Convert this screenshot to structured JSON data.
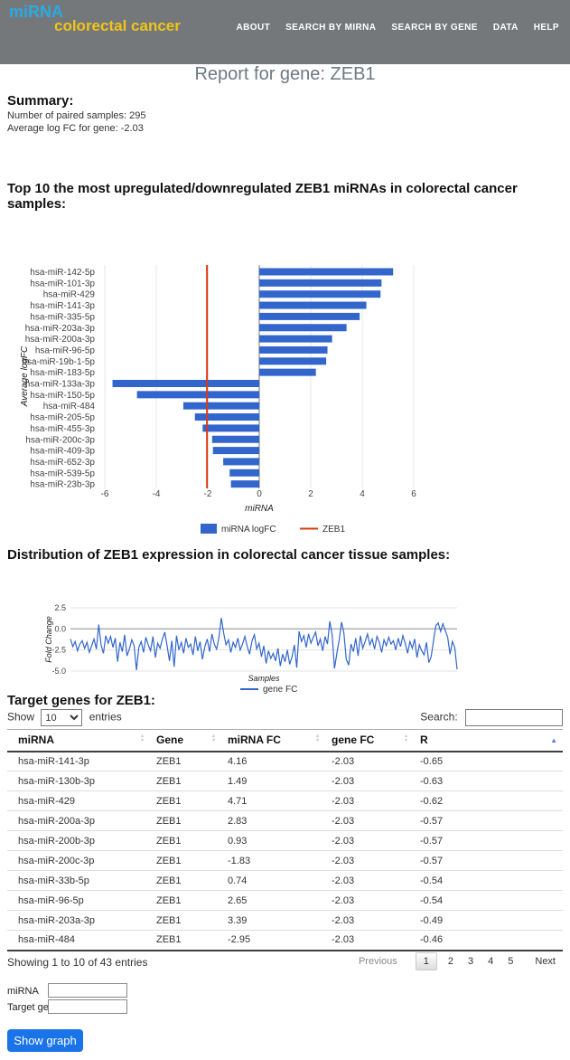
{
  "header": {
    "logo_line1": "miRNA",
    "logo_line2": "colorectal cancer",
    "bg_color": "#75787b",
    "logo_color1": "#29abe2",
    "logo_color2": "#f0c419",
    "nav": [
      "ABOUT",
      "SEARCH BY MIRNA",
      "SEARCH BY GENE",
      "DATA",
      "HELP"
    ]
  },
  "page_title": "Report for gene: ZEB1",
  "summary": {
    "heading": "Summary:",
    "lines": [
      "Number of paired samples: 295",
      "Average log FC for gene: -2.03"
    ]
  },
  "sections": {
    "bar_heading": "Top 10 the most upregulated/downregulated ZEB1 miRNAs in colorectal cancer samples:",
    "dist_heading": "Distribution of ZEB1 expression in colorectal cancer tissue samples:",
    "table_heading": "Target genes for ZEB1:"
  },
  "chart_data": [
    {
      "type": "bar",
      "orientation": "horizontal",
      "categories": [
        "hsa-miR-142-5p",
        "hsa-miR-101-3p",
        "hsa-miR-429",
        "hsa-miR-141-3p",
        "hsa-miR-335-5p",
        "hsa-miR-203a-3p",
        "hsa-miR-200a-3p",
        "hsa-miR-96-5p",
        "hsa-miR-19b-1-5p",
        "hsa-miR-183-5p",
        "hsa-miR-133a-3p",
        "hsa-miR-150-5p",
        "hsa-miR-484",
        "hsa-miR-205-5p",
        "hsa-miR-455-3p",
        "hsa-miR-200c-3p",
        "hsa-miR-409-3p",
        "hsa-miR-652-3p",
        "hsa-miR-539-5p",
        "hsa-miR-23b-3p"
      ],
      "values": [
        5.2,
        4.75,
        4.71,
        4.16,
        3.9,
        3.39,
        2.83,
        2.65,
        2.6,
        2.2,
        -5.7,
        -4.75,
        -2.95,
        -2.5,
        -2.2,
        -1.83,
        -1.8,
        -1.4,
        -1.15,
        -1.1
      ],
      "xlabel": "miRNA",
      "ylabel": "Average logFC",
      "xlim": [
        -6,
        6
      ],
      "xticks": [
        -6,
        -4,
        -2,
        0,
        2,
        4,
        6
      ],
      "bar_color": "#3366cc",
      "reference_line": {
        "label": "ZEB1",
        "value": -2.03,
        "color": "#dc3912"
      },
      "legend": [
        {
          "label": "miRNA logFC",
          "color": "#3366cc",
          "shape": "rect"
        },
        {
          "label": "ZEB1",
          "color": "#dc3912",
          "shape": "line"
        }
      ],
      "grid": true,
      "legend_position": "bottom"
    },
    {
      "type": "line",
      "xlabel": "Samples",
      "ylabel": "Fold Change",
      "yticks": [
        2.5,
        0.0,
        -2.5,
        -5.0
      ],
      "ylim": [
        -5.5,
        3.2
      ],
      "line_color": "#3366cc",
      "grid": true,
      "legend_position": "bottom",
      "series": [
        {
          "name": "gene FC",
          "values": [
            -1.2,
            -2.1,
            -1.5,
            -2.6,
            -1.8,
            -1.4,
            -2.3,
            -1.6,
            -2.8,
            -2.0,
            -1.2,
            -2.4,
            0.5,
            -1.9,
            -2.9,
            -0.8,
            -1.7,
            -0.9,
            -2.2,
            -1.1,
            -3.9,
            -1.6,
            -2.7,
            -0.7,
            -3.2,
            -2.4,
            -1.3,
            -2.0,
            -4.9,
            -2.2,
            -1.5,
            -2.8,
            -1.0,
            -1.9,
            -2.6,
            -0.9,
            -3.4,
            -1.7,
            -2.3,
            -1.2,
            -0.4,
            -2.0,
            -3.8,
            -1.4,
            -4.5,
            -0.8,
            -2.5,
            -1.6,
            -2.9,
            -1.1,
            -2.2,
            -1.8,
            -3.1,
            -0.9,
            -2.6,
            -1.5,
            -3.6,
            -2.1,
            -1.2,
            -2.7,
            -0.6,
            -1.8,
            -2.4,
            -1.0,
            1.3,
            -0.5,
            -1.9,
            -1.3,
            -2.8,
            -1.6,
            -2.2,
            -1.1,
            -2.5,
            -1.8,
            -0.9,
            -2.1,
            -3.0,
            -1.4,
            -0.7,
            -2.4,
            -1.7,
            -3.3,
            -2.0,
            -4.1,
            -2.6,
            -3.5,
            -2.9,
            -3.8,
            -2.3,
            -4.4,
            -3.0,
            -3.9,
            -2.5,
            -4.2,
            -3.3,
            -1.9,
            -4.6,
            -0.3,
            -1.5,
            -0.8,
            -2.2,
            -0.6,
            -1.7,
            -1.0,
            -0.4,
            -2.0,
            -1.2,
            -2.6,
            -0.9,
            -1.8,
            0.9,
            -0.7,
            -4.7,
            -2.9,
            -1.3,
            0.8,
            -0.5,
            -3.6,
            -4.3,
            -1.8,
            -2.7,
            -1.1,
            -3.2,
            -0.8,
            -2.3,
            -1.5,
            -0.6,
            -1.9,
            -1.2,
            -2.4,
            -0.9,
            -1.6,
            -2.8,
            -1.3,
            -2.0,
            -1.0,
            -1.8,
            -1.4,
            -2.5,
            -1.1,
            -2.1,
            -0.8,
            -1.7,
            -2.9,
            -1.5,
            -2.3,
            -1.2,
            -3.4,
            -1.9,
            -2.6,
            -3.1,
            -1.6,
            -4.0,
            -3.3,
            -1.4,
            0.4,
            0.7,
            -0.3,
            0.6,
            -0.2,
            -1.0,
            -3.0,
            -1.5,
            -2.2,
            -4.8
          ]
        }
      ]
    }
  ],
  "table": {
    "show_label_before": "Show",
    "show_value": "10",
    "show_label_after": "entries",
    "search_label": "Search:",
    "search_value": "",
    "columns": [
      {
        "label": "miRNA",
        "sort": "none"
      },
      {
        "label": "Gene",
        "sort": "none"
      },
      {
        "label": "miRNA FC",
        "sort": "none"
      },
      {
        "label": "gene FC",
        "sort": "none"
      },
      {
        "label": "R",
        "sort": "asc"
      }
    ],
    "rows": [
      [
        "hsa-miR-141-3p",
        "ZEB1",
        "4.16",
        "-2.03",
        "-0.65"
      ],
      [
        "hsa-miR-130b-3p",
        "ZEB1",
        "1.49",
        "-2.03",
        "-0.63"
      ],
      [
        "hsa-miR-429",
        "ZEB1",
        "4.71",
        "-2.03",
        "-0.62"
      ],
      [
        "hsa-miR-200a-3p",
        "ZEB1",
        "2.83",
        "-2.03",
        "-0.57"
      ],
      [
        "hsa-miR-200b-3p",
        "ZEB1",
        "0.93",
        "-2.03",
        "-0.57"
      ],
      [
        "hsa-miR-200c-3p",
        "ZEB1",
        "-1.83",
        "-2.03",
        "-0.57"
      ],
      [
        "hsa-miR-33b-5p",
        "ZEB1",
        "0.74",
        "-2.03",
        "-0.54"
      ],
      [
        "hsa-miR-96-5p",
        "ZEB1",
        "2.65",
        "-2.03",
        "-0.54"
      ],
      [
        "hsa-miR-203a-3p",
        "ZEB1",
        "3.39",
        "-2.03",
        "-0.49"
      ],
      [
        "hsa-miR-484",
        "ZEB1",
        "-2.95",
        "-2.03",
        "-0.46"
      ]
    ],
    "info": "Showing 1 to 10 of 43 entries"
  },
  "pagination": {
    "previous": "Previous",
    "pages": [
      "1",
      "2",
      "3",
      "4",
      "5"
    ],
    "active": "1",
    "next": "Next"
  },
  "form": {
    "mirna_label": "miRNA",
    "mirna_value": "",
    "gene_label": "Target gene",
    "gene_value": "",
    "button_label": "Show graph",
    "button_color": "#1a73e8"
  }
}
